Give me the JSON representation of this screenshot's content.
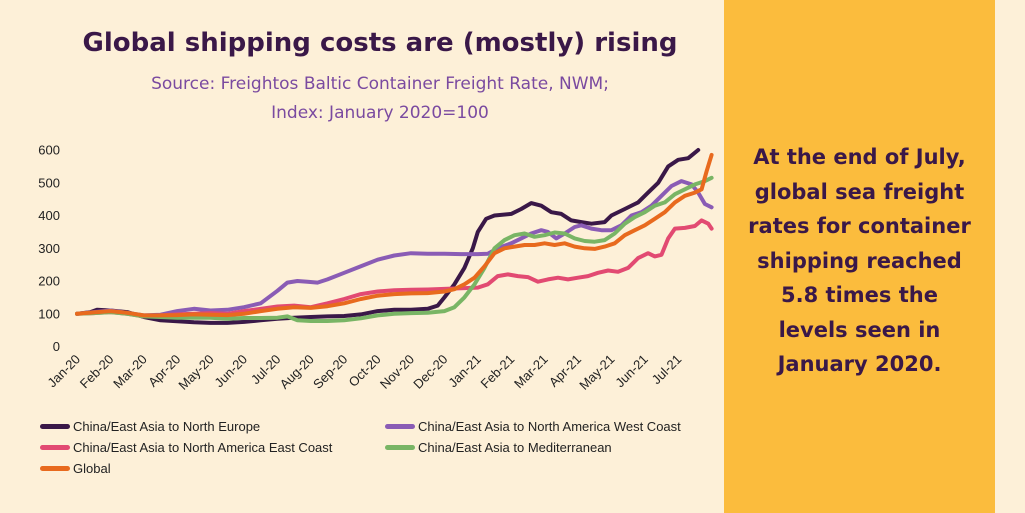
{
  "title": "Global shipping costs are (mostly) rising",
  "subtitle_lines": [
    "Source: Freightos Baltic Container Freight Rate, NWM;",
    "Index: January 2020=100"
  ],
  "callout_lines": [
    "At the end of July,",
    "global sea freight",
    "rates for container",
    "shipping reached",
    "5.8 times the",
    "levels seen in",
    "January 2020."
  ],
  "colors": {
    "background": "#fdf0d8",
    "callout_bg": "#fbbc3d",
    "title": "#3a1848",
    "subtitle": "#7a4aa0"
  },
  "chart_data": {
    "type": "line",
    "title": "Global shipping costs are (mostly) rising",
    "subtitle": "Source: Freightos Baltic Container Freight Rate, NWM; Index: January 2020=100",
    "xlabel": "",
    "ylabel": "",
    "ylim": [
      0,
      600
    ],
    "yticks": [
      "0",
      "100",
      "200",
      "300",
      "400",
      "500",
      "600"
    ],
    "x_ticks": [
      "Jan-20",
      "Feb-20",
      "Mar-20",
      "Apr-20",
      "May-20",
      "Jun-20",
      "Jul-20",
      "Aug-20",
      "Sep-20",
      "Oct-20",
      "Nov-20",
      "Dec-20",
      "Jan-21",
      "Feb-21",
      "Mar-21",
      "Apr-21",
      "May-21",
      "Jun-21",
      "Jul-21"
    ],
    "x_unit": "months since Jan-20",
    "grid": false,
    "legend_position": "bottom",
    "series": [
      {
        "name": "China/East Asia to North Europe",
        "color": "#3a1848",
        "points": [
          [
            0,
            100
          ],
          [
            0.4,
            105
          ],
          [
            0.6,
            112
          ],
          [
            1,
            110
          ],
          [
            1.5,
            105
          ],
          [
            2,
            90
          ],
          [
            2.5,
            80
          ],
          [
            3,
            77
          ],
          [
            3.5,
            74
          ],
          [
            4,
            72
          ],
          [
            4.5,
            72
          ],
          [
            5,
            75
          ],
          [
            5.5,
            80
          ],
          [
            6,
            85
          ],
          [
            6.5,
            88
          ],
          [
            7,
            90
          ],
          [
            7.5,
            92
          ],
          [
            8,
            93
          ],
          [
            8.5,
            98
          ],
          [
            9,
            108
          ],
          [
            9.5,
            112
          ],
          [
            10,
            112
          ],
          [
            10.5,
            115
          ],
          [
            10.8,
            125
          ],
          [
            11,
            150
          ],
          [
            11.3,
            190
          ],
          [
            11.6,
            240
          ],
          [
            11.85,
            300
          ],
          [
            12,
            350
          ],
          [
            12.25,
            390
          ],
          [
            12.5,
            400
          ],
          [
            13,
            405
          ],
          [
            13.3,
            420
          ],
          [
            13.6,
            438
          ],
          [
            13.9,
            430
          ],
          [
            14.2,
            410
          ],
          [
            14.5,
            405
          ],
          [
            14.8,
            385
          ],
          [
            15.1,
            380
          ],
          [
            15.4,
            375
          ],
          [
            15.8,
            380
          ],
          [
            16,
            400
          ],
          [
            16.4,
            420
          ],
          [
            16.8,
            440
          ],
          [
            17.1,
            470
          ],
          [
            17.4,
            500
          ],
          [
            17.7,
            550
          ],
          [
            18,
            570
          ],
          [
            18.3,
            575
          ],
          [
            18.6,
            600
          ]
        ]
      },
      {
        "name": "China/East Asia to North America West Coast",
        "color": "#8a5cb5",
        "points": [
          [
            0,
            100
          ],
          [
            0.5,
            105
          ],
          [
            1,
            110
          ],
          [
            1.5,
            103
          ],
          [
            2,
            95
          ],
          [
            2.5,
            97
          ],
          [
            3,
            108
          ],
          [
            3.5,
            115
          ],
          [
            4,
            110
          ],
          [
            4.5,
            112
          ],
          [
            5,
            120
          ],
          [
            5.5,
            132
          ],
          [
            6,
            170
          ],
          [
            6.3,
            195
          ],
          [
            6.6,
            200
          ],
          [
            6.9,
            198
          ],
          [
            7.2,
            195
          ],
          [
            7.5,
            205
          ],
          [
            8,
            225
          ],
          [
            8.5,
            245
          ],
          [
            9,
            265
          ],
          [
            9.5,
            278
          ],
          [
            10,
            285
          ],
          [
            10.5,
            283
          ],
          [
            11,
            283
          ],
          [
            11.5,
            282
          ],
          [
            12,
            282
          ],
          [
            12.3,
            283
          ],
          [
            12.6,
            300
          ],
          [
            13,
            315
          ],
          [
            13.3,
            330
          ],
          [
            13.6,
            345
          ],
          [
            13.9,
            355
          ],
          [
            14.1,
            350
          ],
          [
            14.35,
            330
          ],
          [
            14.6,
            345
          ],
          [
            14.9,
            365
          ],
          [
            15.1,
            370
          ],
          [
            15.4,
            360
          ],
          [
            15.7,
            355
          ],
          [
            16,
            355
          ],
          [
            16.3,
            370
          ],
          [
            16.6,
            400
          ],
          [
            16.9,
            410
          ],
          [
            17.2,
            430
          ],
          [
            17.5,
            460
          ],
          [
            17.8,
            490
          ],
          [
            18.1,
            505
          ],
          [
            18.4,
            495
          ],
          [
            18.6,
            470
          ],
          [
            18.8,
            435
          ],
          [
            19,
            425
          ]
        ]
      },
      {
        "name": "China/East Asia to North America East Coast",
        "color": "#e24a72",
        "points": [
          [
            0,
            100
          ],
          [
            0.5,
            102
          ],
          [
            1,
            105
          ],
          [
            1.5,
            100
          ],
          [
            2,
            92
          ],
          [
            2.5,
            95
          ],
          [
            3,
            98
          ],
          [
            3.5,
            100
          ],
          [
            4,
            102
          ],
          [
            4.5,
            100
          ],
          [
            5,
            108
          ],
          [
            5.5,
            115
          ],
          [
            6,
            122
          ],
          [
            6.5,
            125
          ],
          [
            7,
            120
          ],
          [
            7.5,
            132
          ],
          [
            8,
            145
          ],
          [
            8.5,
            160
          ],
          [
            9,
            168
          ],
          [
            9.5,
            172
          ],
          [
            10,
            173
          ],
          [
            10.5,
            174
          ],
          [
            11,
            176
          ],
          [
            11.5,
            178
          ],
          [
            12,
            180
          ],
          [
            12.3,
            190
          ],
          [
            12.6,
            215
          ],
          [
            12.9,
            220
          ],
          [
            13.2,
            215
          ],
          [
            13.5,
            212
          ],
          [
            13.8,
            198
          ],
          [
            14.1,
            205
          ],
          [
            14.4,
            210
          ],
          [
            14.7,
            205
          ],
          [
            15,
            210
          ],
          [
            15.3,
            215
          ],
          [
            15.6,
            225
          ],
          [
            15.9,
            232
          ],
          [
            16.2,
            228
          ],
          [
            16.5,
            240
          ],
          [
            16.8,
            270
          ],
          [
            17.1,
            285
          ],
          [
            17.3,
            275
          ],
          [
            17.5,
            280
          ],
          [
            17.7,
            330
          ],
          [
            17.9,
            360
          ],
          [
            18.2,
            362
          ],
          [
            18.5,
            368
          ],
          [
            18.7,
            385
          ],
          [
            18.9,
            375
          ],
          [
            19,
            360
          ]
        ]
      },
      {
        "name": "China/East Asia to Mediterranean",
        "color": "#79b565",
        "points": [
          [
            0,
            100
          ],
          [
            0.5,
            102
          ],
          [
            1,
            105
          ],
          [
            1.5,
            100
          ],
          [
            2,
            92
          ],
          [
            2.5,
            90
          ],
          [
            3,
            88
          ],
          [
            3.5,
            88
          ],
          [
            4,
            88
          ],
          [
            4.5,
            85
          ],
          [
            5,
            87
          ],
          [
            5.5,
            87
          ],
          [
            6,
            88
          ],
          [
            6.3,
            92
          ],
          [
            6.6,
            80
          ],
          [
            7,
            78
          ],
          [
            7.5,
            78
          ],
          [
            8,
            80
          ],
          [
            8.5,
            86
          ],
          [
            9,
            95
          ],
          [
            9.5,
            100
          ],
          [
            10,
            102
          ],
          [
            10.5,
            103
          ],
          [
            11,
            108
          ],
          [
            11.3,
            120
          ],
          [
            11.6,
            150
          ],
          [
            11.9,
            190
          ],
          [
            12.2,
            240
          ],
          [
            12.5,
            300
          ],
          [
            12.8,
            325
          ],
          [
            13.1,
            340
          ],
          [
            13.4,
            345
          ],
          [
            13.7,
            335
          ],
          [
            14,
            340
          ],
          [
            14.3,
            348
          ],
          [
            14.6,
            345
          ],
          [
            14.9,
            330
          ],
          [
            15.2,
            322
          ],
          [
            15.5,
            320
          ],
          [
            15.8,
            325
          ],
          [
            16.1,
            345
          ],
          [
            16.4,
            375
          ],
          [
            16.7,
            395
          ],
          [
            17,
            410
          ],
          [
            17.3,
            430
          ],
          [
            17.6,
            440
          ],
          [
            17.9,
            465
          ],
          [
            18.2,
            480
          ],
          [
            18.5,
            495
          ],
          [
            18.8,
            505
          ],
          [
            19,
            515
          ]
        ]
      },
      {
        "name": "Global",
        "color": "#e86a1e",
        "points": [
          [
            0,
            100
          ],
          [
            0.5,
            104
          ],
          [
            1,
            108
          ],
          [
            1.5,
            103
          ],
          [
            2,
            95
          ],
          [
            2.5,
            95
          ],
          [
            3,
            96
          ],
          [
            3.5,
            98
          ],
          [
            4,
            97
          ],
          [
            4.5,
            96
          ],
          [
            5,
            100
          ],
          [
            5.5,
            108
          ],
          [
            6,
            115
          ],
          [
            6.5,
            120
          ],
          [
            7,
            118
          ],
          [
            7.5,
            123
          ],
          [
            8,
            132
          ],
          [
            8.5,
            145
          ],
          [
            9,
            155
          ],
          [
            9.5,
            160
          ],
          [
            10,
            162
          ],
          [
            10.5,
            163
          ],
          [
            11,
            168
          ],
          [
            11.3,
            175
          ],
          [
            11.6,
            190
          ],
          [
            11.9,
            210
          ],
          [
            12.2,
            245
          ],
          [
            12.5,
            285
          ],
          [
            12.8,
            300
          ],
          [
            13.1,
            305
          ],
          [
            13.4,
            310
          ],
          [
            13.7,
            310
          ],
          [
            14,
            315
          ],
          [
            14.3,
            310
          ],
          [
            14.6,
            315
          ],
          [
            14.9,
            305
          ],
          [
            15.2,
            300
          ],
          [
            15.5,
            298
          ],
          [
            15.8,
            305
          ],
          [
            16.1,
            315
          ],
          [
            16.4,
            340
          ],
          [
            16.7,
            355
          ],
          [
            17,
            370
          ],
          [
            17.3,
            390
          ],
          [
            17.6,
            410
          ],
          [
            17.9,
            440
          ],
          [
            18.2,
            460
          ],
          [
            18.5,
            470
          ],
          [
            18.7,
            480
          ],
          [
            18.85,
            535
          ],
          [
            19,
            585
          ]
        ]
      }
    ]
  }
}
